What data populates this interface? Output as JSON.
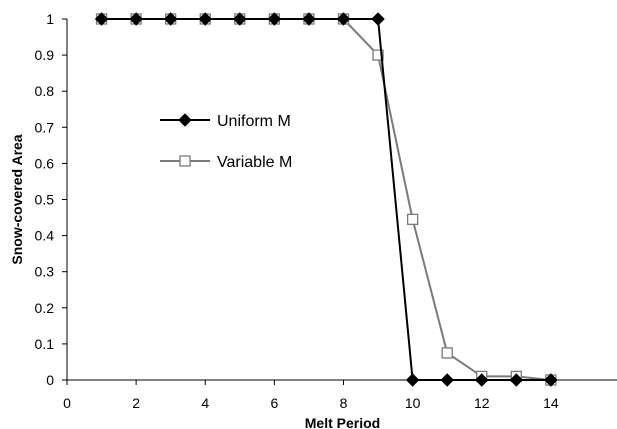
{
  "chart_data": {
    "type": "line",
    "xlabel": "Melt Period",
    "ylabel": "Snow-covered Area",
    "xlim": [
      0,
      16
    ],
    "ylim": [
      0,
      1
    ],
    "x_ticks": [
      0,
      2,
      4,
      6,
      8,
      10,
      12,
      14
    ],
    "y_ticks": [
      0,
      0.1,
      0.2,
      0.3,
      0.4,
      0.5,
      0.6,
      0.7,
      0.8,
      0.9,
      1
    ],
    "grid": false,
    "legend_position": "left, inside plot",
    "series": [
      {
        "name": "Uniform M",
        "marker": "filled-diamond",
        "color": "#000000",
        "x": [
          1,
          2,
          3,
          4,
          5,
          6,
          7,
          8,
          9,
          10,
          11,
          12,
          13,
          14
        ],
        "y": [
          1,
          1,
          1,
          1,
          1,
          1,
          1,
          1,
          1,
          0,
          0,
          0,
          0,
          0
        ]
      },
      {
        "name": "Variable M",
        "marker": "open-square",
        "color": "#7a7a7a",
        "x": [
          1,
          2,
          3,
          4,
          5,
          6,
          7,
          8,
          9,
          10,
          11,
          12,
          13,
          14
        ],
        "y": [
          1,
          1,
          1,
          1,
          1,
          1,
          1,
          1,
          0.9,
          0.445,
          0.075,
          0.01,
          0.01,
          0
        ]
      }
    ]
  }
}
